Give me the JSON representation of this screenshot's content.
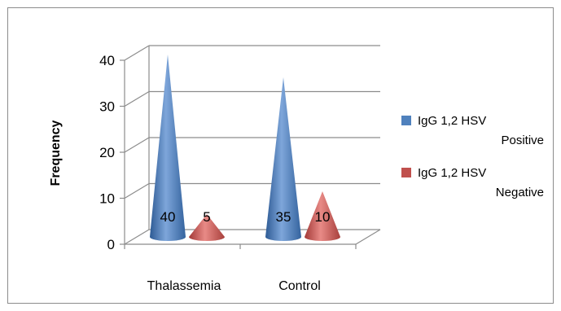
{
  "chart_data": {
    "type": "bar",
    "shape": "cone-3d",
    "categories": [
      "Thalassemia",
      "Control"
    ],
    "series": [
      {
        "name": "IgG 1,2 HSV Positive",
        "values": [
          40,
          35
        ],
        "color": "#4f81bd",
        "legend_lines": [
          "IgG 1,2 HSV",
          "Positive"
        ]
      },
      {
        "name": "IgG 1,2 HSV Negative",
        "values": [
          5,
          10
        ],
        "color": "#c0504d",
        "legend_lines": [
          "IgG 1,2 HSV",
          "Negative"
        ]
      }
    ],
    "ylabel": "Frequency",
    "xlabel": "",
    "ylim": [
      0,
      40
    ],
    "yticks": [
      0,
      10,
      20,
      30,
      40
    ],
    "grid": true,
    "legend_position": "right"
  }
}
